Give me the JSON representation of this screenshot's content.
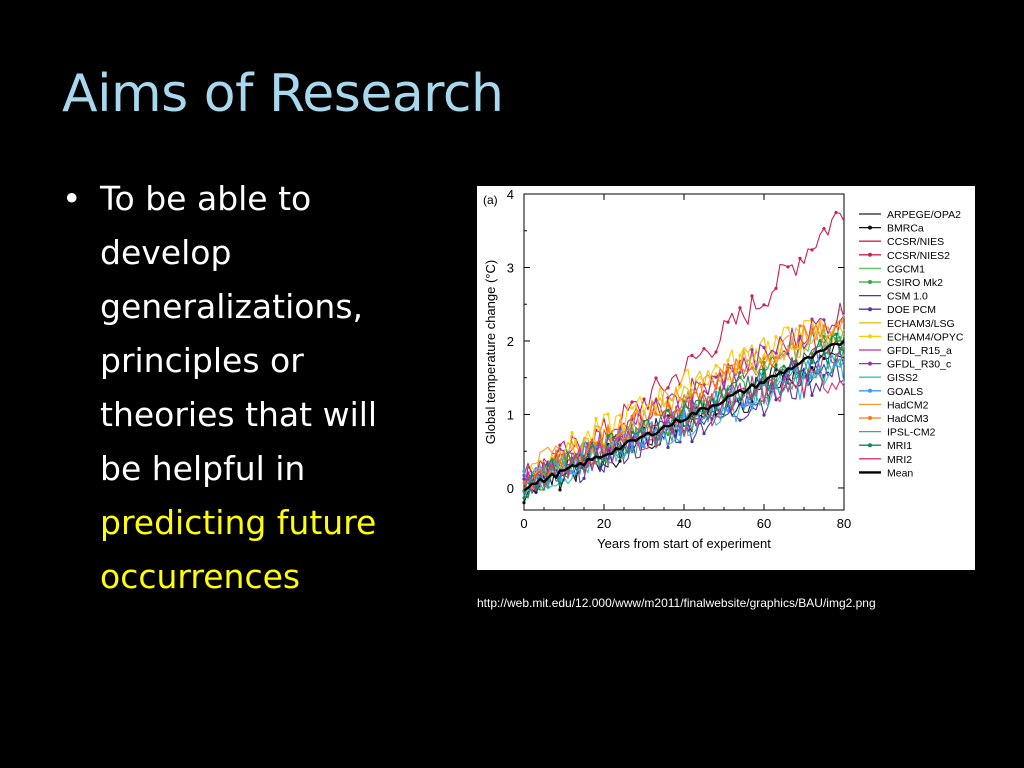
{
  "slide": {
    "title": "Aims of Research",
    "bullet_lines": [
      "To be able to",
      "develop",
      "generalizations,",
      "principles or",
      "theories that will",
      "be helpful in"
    ],
    "highlight_lines": [
      "predicting future",
      "occurrences"
    ],
    "highlight_color": "#ffff00",
    "title_color": "#a8d8ee",
    "source_url": "http://web.mit.edu/12.000/www/m2011/finalwebsite/graphics/BAU/img2.png"
  },
  "chart_data": {
    "type": "line",
    "panel_label": "(a)",
    "title": "",
    "xlabel": "Years from start of experiment",
    "ylabel": "Global temperature change (°C)",
    "xlim": [
      0,
      80
    ],
    "ylim": [
      -0.3,
      4
    ],
    "xticks": [
      0,
      20,
      40,
      60,
      80
    ],
    "yticks": [
      0,
      1,
      2,
      3,
      4
    ],
    "grid": false,
    "legend_position": "right",
    "series": [
      {
        "name": "ARPEGE/OPA2",
        "color": "#222222",
        "marker": false,
        "anchors": [
          [
            0,
            0.05
          ],
          [
            20,
            0.45
          ],
          [
            40,
            0.9
          ],
          [
            60,
            1.3
          ],
          [
            80,
            1.75
          ]
        ]
      },
      {
        "name": "BMRCa",
        "color": "#111111",
        "marker": true,
        "anchors": [
          [
            0,
            0.0
          ],
          [
            20,
            0.4
          ],
          [
            40,
            0.95
          ],
          [
            60,
            1.45
          ],
          [
            80,
            1.9
          ]
        ]
      },
      {
        "name": "CCSR/NIES",
        "color": "#cc2a4a",
        "marker": false,
        "anchors": [
          [
            0,
            0.1
          ],
          [
            20,
            0.6
          ],
          [
            40,
            1.25
          ],
          [
            60,
            1.75
          ],
          [
            80,
            2.2
          ]
        ]
      },
      {
        "name": "CCSR/NIES2",
        "color": "#cc1f55",
        "marker": true,
        "anchors": [
          [
            0,
            0.15
          ],
          [
            20,
            0.75
          ],
          [
            40,
            1.6
          ],
          [
            60,
            2.6
          ],
          [
            80,
            3.8
          ]
        ]
      },
      {
        "name": "CGCM1",
        "color": "#55cc55",
        "marker": false,
        "anchors": [
          [
            0,
            0.1
          ],
          [
            20,
            0.55
          ],
          [
            40,
            1.1
          ],
          [
            60,
            1.7
          ],
          [
            80,
            2.2
          ]
        ]
      },
      {
        "name": "CSIRO Mk2",
        "color": "#33aa33",
        "marker": true,
        "anchors": [
          [
            0,
            0.05
          ],
          [
            20,
            0.5
          ],
          [
            40,
            1.0
          ],
          [
            60,
            1.5
          ],
          [
            80,
            2.0
          ]
        ]
      },
      {
        "name": "CSM 1.0",
        "color": "#3344aa",
        "marker": false,
        "anchors": [
          [
            0,
            0.05
          ],
          [
            20,
            0.45
          ],
          [
            40,
            0.9
          ],
          [
            60,
            1.35
          ],
          [
            80,
            1.8
          ]
        ]
      },
      {
        "name": "DOE PCM",
        "color": "#5533aa",
        "marker": true,
        "anchors": [
          [
            0,
            0.0
          ],
          [
            20,
            0.4
          ],
          [
            40,
            0.8
          ],
          [
            60,
            1.2
          ],
          [
            80,
            1.6
          ]
        ]
      },
      {
        "name": "ECHAM3/LSG",
        "color": "#e8c020",
        "marker": false,
        "anchors": [
          [
            0,
            0.15
          ],
          [
            20,
            0.65
          ],
          [
            40,
            1.3
          ],
          [
            60,
            1.85
          ],
          [
            80,
            2.2
          ]
        ]
      },
      {
        "name": "ECHAM4/OPYC",
        "color": "#ffcc00",
        "marker": true,
        "anchors": [
          [
            0,
            0.2
          ],
          [
            20,
            0.8
          ],
          [
            40,
            1.4
          ],
          [
            60,
            1.9
          ],
          [
            80,
            2.3
          ]
        ]
      },
      {
        "name": "GFDL_R15_a",
        "color": "#bb3399",
        "marker": false,
        "anchors": [
          [
            0,
            0.1
          ],
          [
            20,
            0.5
          ],
          [
            40,
            1.0
          ],
          [
            60,
            1.4
          ],
          [
            80,
            1.9
          ]
        ]
      },
      {
        "name": "GFDL_R30_c",
        "color": "#9933aa",
        "marker": true,
        "anchors": [
          [
            0,
            0.15
          ],
          [
            20,
            0.6
          ],
          [
            40,
            1.2
          ],
          [
            60,
            1.8
          ],
          [
            80,
            2.4
          ]
        ]
      },
      {
        "name": "GISS2",
        "color": "#33bbdd",
        "marker": false,
        "anchors": [
          [
            0,
            0.05
          ],
          [
            20,
            0.4
          ],
          [
            40,
            0.85
          ],
          [
            60,
            1.25
          ],
          [
            80,
            1.6
          ]
        ]
      },
      {
        "name": "GOALS",
        "color": "#3399ff",
        "marker": true,
        "anchors": [
          [
            0,
            0.1
          ],
          [
            20,
            0.5
          ],
          [
            40,
            0.95
          ],
          [
            60,
            1.4
          ],
          [
            80,
            1.85
          ]
        ]
      },
      {
        "name": "HadCM2",
        "color": "#ff9933",
        "marker": false,
        "anchors": [
          [
            0,
            0.2
          ],
          [
            20,
            0.7
          ],
          [
            40,
            1.3
          ],
          [
            60,
            1.8
          ],
          [
            80,
            2.2
          ]
        ]
      },
      {
        "name": "HadCM3",
        "color": "#ff7711",
        "marker": true,
        "anchors": [
          [
            0,
            0.15
          ],
          [
            20,
            0.65
          ],
          [
            40,
            1.2
          ],
          [
            60,
            1.75
          ],
          [
            80,
            2.3
          ]
        ]
      },
      {
        "name": "IPSL-CM2",
        "color": "#44aa77",
        "marker": false,
        "anchors": [
          [
            0,
            0.05
          ],
          [
            20,
            0.45
          ],
          [
            40,
            0.9
          ],
          [
            60,
            1.35
          ],
          [
            80,
            1.75
          ]
        ]
      },
      {
        "name": "MRI1",
        "color": "#118855",
        "marker": true,
        "anchors": [
          [
            0,
            0.05
          ],
          [
            20,
            0.5
          ],
          [
            40,
            1.0
          ],
          [
            60,
            1.5
          ],
          [
            80,
            1.95
          ]
        ]
      },
      {
        "name": "MRI2",
        "color": "#dd3377",
        "marker": false,
        "anchors": [
          [
            0,
            0.1
          ],
          [
            20,
            0.5
          ],
          [
            40,
            0.9
          ],
          [
            60,
            1.3
          ],
          [
            80,
            1.5
          ]
        ]
      },
      {
        "name": "Mean",
        "color": "#000000",
        "marker": false,
        "width": 2.4,
        "mean": true,
        "anchors": [
          [
            0,
            0.0
          ],
          [
            20,
            0.45
          ],
          [
            40,
            0.95
          ],
          [
            60,
            1.45
          ],
          [
            80,
            2.0
          ]
        ]
      }
    ]
  }
}
